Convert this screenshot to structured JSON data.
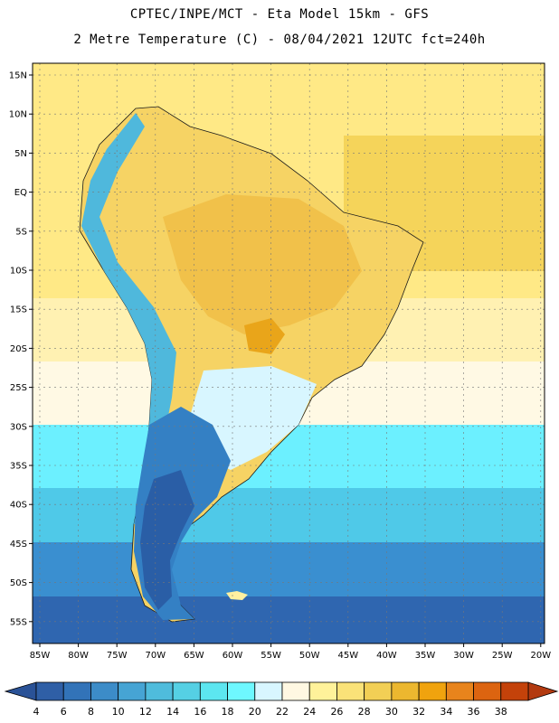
{
  "header": {
    "line1": "CPTEC/INPE/MCT -  Eta Model 15km - GFS",
    "line2": "2 Metre Temperature (C) - 08/04/2021 12UTC fct=240h"
  },
  "lat_labels": [
    "15N",
    "10N",
    "5N",
    "EQ",
    "5S",
    "10S",
    "15S",
    "20S",
    "25S",
    "30S",
    "35S",
    "40S",
    "45S",
    "50S",
    "55S"
  ],
  "lon_labels": [
    "85W",
    "80W",
    "75W",
    "70W",
    "65W",
    "60W",
    "55W",
    "50W",
    "45W",
    "40W",
    "35W",
    "30W",
    "25W",
    "20W"
  ],
  "colorbar": {
    "labels": [
      "4",
      "6",
      "8",
      "10",
      "12",
      "14",
      "16",
      "18",
      "20",
      "22",
      "24",
      "26",
      "28",
      "30",
      "32",
      "34",
      "36",
      "38"
    ],
    "colors": [
      "#2f5fa6",
      "#3273b8",
      "#3c8cc8",
      "#46a4d4",
      "#4fbcdc",
      "#55d0e4",
      "#5ce6f0",
      "#6ef8ff",
      "#d8f6ff",
      "#fff8e2",
      "#fff29a",
      "#fae278",
      "#f2cf55",
      "#ecb72f",
      "#f0a30e",
      "#e8841c",
      "#dc6410",
      "#c4420a"
    ],
    "low_color": "#2a5297",
    "high_color": "#b33a10"
  },
  "map_colors": {
    "ocean_tropic": "#ffe986",
    "ocean_warm": "#f5d45a",
    "ocean_pale": "#fff1b2",
    "ocean_cream": "#fff9e4",
    "ocean_cyan": "#6cf0ff",
    "ocean_mid": "#4fc9e8",
    "ocean_deep": "#3a8fd0",
    "ocean_far": "#2f66b0",
    "land_hot": "#f1c14a",
    "land_warm": "#f6d364",
    "land_mild": "#fff0a0",
    "land_cool": "#d8f6ff",
    "andes": "#4fb8dc",
    "patagonia": "#3480c4",
    "patagonia_deep": "#2a5ea6",
    "hotspot": "#e9a51a"
  }
}
